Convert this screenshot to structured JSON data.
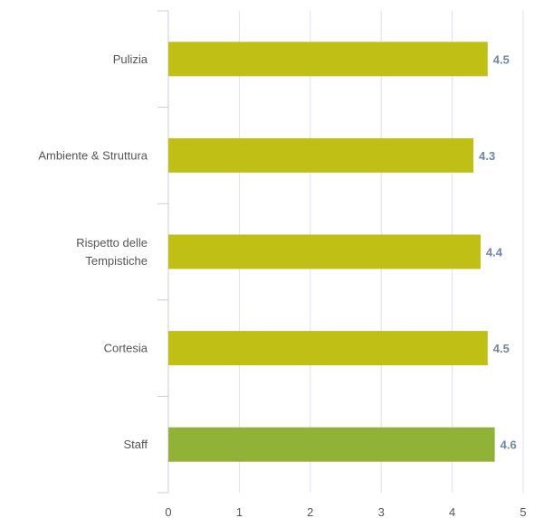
{
  "chart_data": {
    "type": "bar",
    "orientation": "horizontal",
    "categories": [
      [
        "Pulizia"
      ],
      [
        "Ambiente & Struttura"
      ],
      [
        "Rispetto delle",
        "Tempistiche"
      ],
      [
        "Cortesia"
      ],
      [
        "Staff"
      ]
    ],
    "values": [
      4.5,
      4.3,
      4.4,
      4.5,
      4.6
    ],
    "value_labels": [
      "4.5",
      "4.3",
      "4.4",
      "4.5",
      "4.6"
    ],
    "bar_colors": [
      "#bfbf16",
      "#bfbf16",
      "#bfbf16",
      "#bfbf16",
      "#8fb237"
    ],
    "xlim": [
      0,
      5
    ],
    "x_ticks": [
      0,
      1,
      2,
      3,
      4,
      5
    ],
    "grid": "vertical",
    "gridline_color": "#dde0ee",
    "value_label_color": "#6f86a5",
    "title": "",
    "xlabel": "",
    "ylabel": ""
  }
}
